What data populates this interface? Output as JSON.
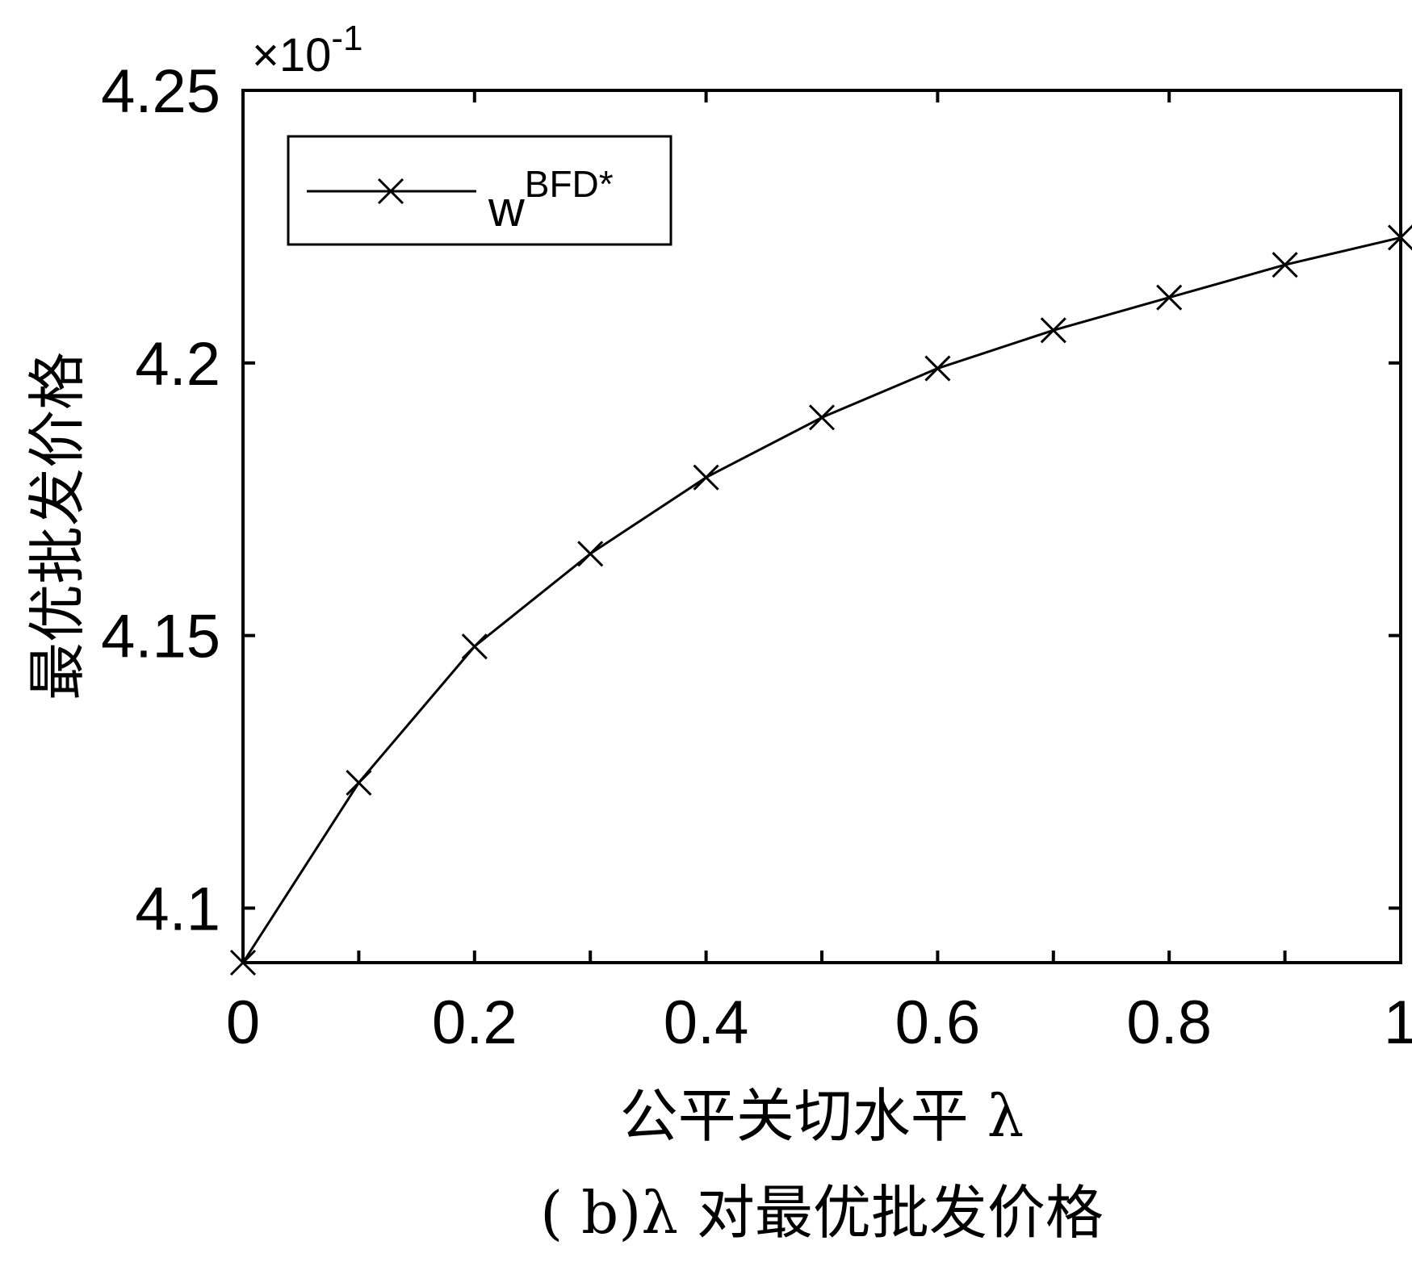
{
  "chart_data": {
    "type": "line",
    "title": "",
    "caption": "( b)λ 对最优批发价格",
    "xlabel": "公平关切水平  λ",
    "ylabel": "最优批发价格",
    "y_multiplier": "×10",
    "y_multiplier_exp": "-1",
    "xlim": [
      0,
      1
    ],
    "ylim": [
      4.09,
      4.25
    ],
    "xticks": [
      0,
      0.2,
      0.4,
      0.6,
      0.8,
      1
    ],
    "xtick_labels": [
      "0",
      "0.2",
      "0.4",
      "0.6",
      "0.8",
      "1"
    ],
    "yticks": [
      4.1,
      4.15,
      4.2,
      4.25
    ],
    "ytick_labels": [
      "4.1",
      "4.15",
      "4.2",
      "4.25"
    ],
    "minor_xticks": [
      0.1,
      0.3,
      0.5,
      0.7,
      0.9
    ],
    "grid": false,
    "legend_position": "top-left",
    "series": [
      {
        "name": "w",
        "name_sup": "BFD*",
        "color": "#000000",
        "marker": "x",
        "x": [
          0,
          0.1,
          0.2,
          0.3,
          0.4,
          0.5,
          0.6,
          0.7,
          0.8,
          0.9,
          1.0
        ],
        "y": [
          4.09,
          4.123,
          4.148,
          4.165,
          4.179,
          4.19,
          4.199,
          4.206,
          4.212,
          4.218,
          4.223
        ]
      }
    ]
  }
}
